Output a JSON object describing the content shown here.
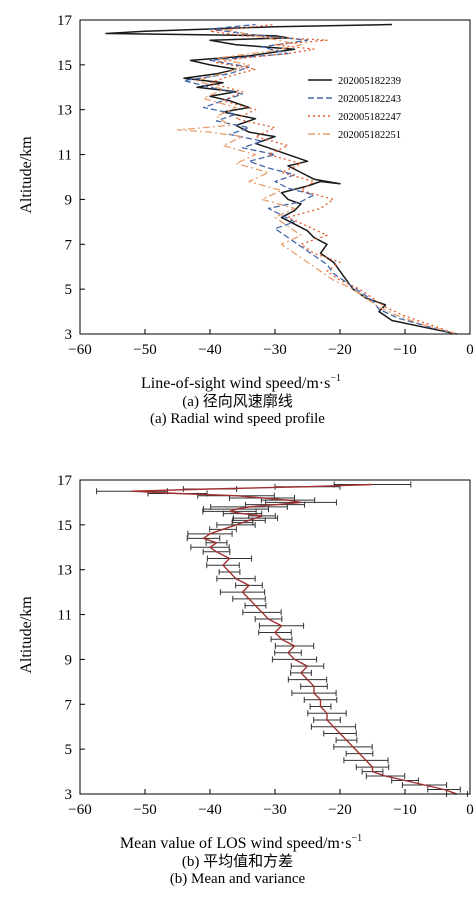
{
  "chart_data": [
    {
      "type": "line",
      "caption_cn": "(a) 径向风速廓线",
      "caption_en": "(a) Radial wind speed profile",
      "xlabel_main": "Line-of-sight wind speed/m·s",
      "xlabel_sup": "−1",
      "ylabel": "Altitude/km",
      "xlim": [
        -60,
        0
      ],
      "ylim": [
        3,
        17
      ],
      "xticks": [
        "−60",
        "−50",
        "−40",
        "−30",
        "−20",
        "−10",
        "0"
      ],
      "yticks": [
        "3",
        "5",
        "7",
        "9",
        "11",
        "13",
        "15",
        "17"
      ],
      "legend_position": "right",
      "series": [
        {
          "name": "202005182239",
          "color": "#1a1a1a",
          "dash": "",
          "x": [
            -2,
            -7,
            -12,
            -14,
            -13,
            -16,
            -18,
            -19,
            -20,
            -21,
            -23,
            -22,
            -24,
            -25,
            -27,
            -29,
            -27,
            -26,
            -28,
            -29,
            -25,
            -23,
            -20,
            -24,
            -26,
            -28,
            -25,
            -28,
            -31,
            -33,
            -30,
            -34,
            -36,
            -33,
            -38,
            -34,
            -37,
            -40,
            -36,
            -42,
            -38,
            -44,
            -39,
            -36,
            -40,
            -43,
            -34,
            -27,
            -36,
            -40,
            -28,
            -30,
            -56,
            -50,
            -40,
            -30,
            -12
          ],
          "y": [
            3,
            3.3,
            3.6,
            4.0,
            4.3,
            4.6,
            5.0,
            5.4,
            5.8,
            6.2,
            6.6,
            7.0,
            7.3,
            7.6,
            7.9,
            8.2,
            8.5,
            8.8,
            9.0,
            9.3,
            9.6,
            9.8,
            9.7,
            9.9,
            10.2,
            10.5,
            10.7,
            11.0,
            11.3,
            11.5,
            11.8,
            12.0,
            12.3,
            12.6,
            12.9,
            13.1,
            13.4,
            13.6,
            13.8,
            14.0,
            14.2,
            14.4,
            14.6,
            14.8,
            15.0,
            15.2,
            15.4,
            15.7,
            15.9,
            16.1,
            16.2,
            16.3,
            16.4,
            16.5,
            16.6,
            16.7,
            16.8
          ]
        },
        {
          "name": "202005182243",
          "color": "#4466aa",
          "dash": "6,3",
          "x": [
            -2,
            -6,
            -11,
            -14,
            -15,
            -17,
            -19,
            -21,
            -22,
            -24,
            -26,
            -28,
            -30,
            -27,
            -29,
            -31,
            -26,
            -24,
            -28,
            -30,
            -27,
            -31,
            -34,
            -30,
            -35,
            -32,
            -37,
            -34,
            -39,
            -36,
            -41,
            -38,
            -35,
            -40,
            -44,
            -37,
            -34,
            -40,
            -28,
            -32,
            -25,
            -35,
            -40,
            -33
          ],
          "y": [
            3,
            3.3,
            3.7,
            4.1,
            4.5,
            4.9,
            5.3,
            5.7,
            6.1,
            6.5,
            6.9,
            7.3,
            7.7,
            8.0,
            8.3,
            8.6,
            8.9,
            9.2,
            9.5,
            9.8,
            10.1,
            10.4,
            10.7,
            11.0,
            11.3,
            11.6,
            11.9,
            12.2,
            12.5,
            12.8,
            13.1,
            13.4,
            13.7,
            14.0,
            14.3,
            14.6,
            14.9,
            15.2,
            15.5,
            15.8,
            16.1,
            16.4,
            16.6,
            16.8
          ]
        },
        {
          "name": "202005182247",
          "color": "#e05a28",
          "dash": "2,3",
          "x": [
            -2,
            -6,
            -10,
            -13,
            -15,
            -17,
            -20,
            -22,
            -20,
            -24,
            -26,
            -22,
            -25,
            -28,
            -23,
            -21,
            -26,
            -24,
            -29,
            -26,
            -31,
            -28,
            -33,
            -30,
            -36,
            -33,
            -38,
            -35,
            -40,
            -37,
            -33,
            -39,
            -35,
            -28,
            -24,
            -30,
            -22,
            -35,
            -40,
            -30
          ],
          "y": [
            3,
            3.4,
            3.8,
            4.2,
            4.6,
            5.0,
            5.4,
            5.8,
            6.2,
            6.6,
            7.0,
            7.4,
            7.8,
            8.2,
            8.6,
            9.0,
            9.4,
            9.8,
            10.2,
            10.6,
            11.0,
            11.4,
            11.8,
            12.2,
            12.6,
            13.0,
            13.4,
            13.8,
            14.2,
            14.5,
            14.8,
            15.1,
            15.3,
            15.5,
            15.7,
            15.9,
            16.1,
            16.3,
            16.5,
            16.8
          ]
        },
        {
          "name": "202005182251",
          "color": "#e8a070",
          "dash": "7,3,2,3",
          "x": [
            -2,
            -7,
            -11,
            -14,
            -16,
            -18,
            -21,
            -23,
            -25,
            -27,
            -29,
            -26,
            -28,
            -30,
            -27,
            -32,
            -29,
            -34,
            -31,
            -36,
            -33,
            -38,
            -35,
            -40,
            -45,
            -37,
            -39,
            -36,
            -41,
            -38,
            -42,
            -37,
            -34,
            -39,
            -31,
            -26,
            -33,
            -38
          ],
          "y": [
            3,
            3.4,
            3.8,
            4.2,
            4.6,
            5.0,
            5.4,
            5.8,
            6.2,
            6.6,
            7.0,
            7.4,
            7.8,
            8.2,
            8.6,
            9.0,
            9.4,
            9.8,
            10.2,
            10.6,
            11.0,
            11.4,
            11.8,
            12.0,
            12.1,
            12.3,
            12.7,
            13.1,
            13.5,
            13.9,
            14.3,
            14.7,
            15.0,
            15.3,
            15.6,
            15.9,
            16.3,
            16.6
          ]
        }
      ]
    },
    {
      "type": "line",
      "caption_cn": "(b) 平均值和方差",
      "caption_en": "(b) Mean and variance",
      "xlabel_main": "Mean value of LOS wind speed/m·s",
      "xlabel_sup": "−1",
      "ylabel": "Altitude/km",
      "xlim": [
        -60,
        0
      ],
      "ylim": [
        3,
        17
      ],
      "xticks": [
        "−60",
        "−50",
        "−40",
        "−30",
        "−20",
        "−10",
        "0"
      ],
      "yticks": [
        "3",
        "5",
        "7",
        "9",
        "11",
        "13",
        "15",
        "17"
      ],
      "series": [
        {
          "name": "",
          "color": "#a03030",
          "dash": "",
          "x": [
            -2,
            -4,
            -7,
            -10,
            -13,
            -15,
            -15,
            -16,
            -17,
            -18,
            -19,
            -20,
            -21,
            -22,
            -22,
            -23,
            -23,
            -24,
            -24,
            -25,
            -26,
            -25,
            -27,
            -28,
            -27,
            -29,
            -30,
            -29,
            -31,
            -32,
            -33,
            -34,
            -35,
            -34,
            -36,
            -37,
            -38,
            -37,
            -39,
            -40,
            -39,
            -41,
            -40,
            -38,
            -36,
            -35,
            -34,
            -33,
            -32,
            -35,
            -37,
            -36,
            -34,
            -30,
            -26,
            -28,
            -32,
            -36,
            -45,
            -52,
            -40,
            -25,
            -15
          ],
          "y": [
            3.0,
            3.2,
            3.4,
            3.6,
            3.8,
            4.0,
            4.2,
            4.5,
            4.8,
            5.1,
            5.4,
            5.7,
            6.0,
            6.3,
            6.6,
            6.9,
            7.2,
            7.5,
            7.8,
            8.1,
            8.4,
            8.7,
            9.0,
            9.3,
            9.6,
            9.9,
            10.2,
            10.5,
            10.8,
            11.1,
            11.4,
            11.7,
            12.0,
            12.3,
            12.6,
            12.9,
            13.2,
            13.5,
            13.8,
            14.0,
            14.2,
            14.4,
            14.6,
            14.8,
            15.0,
            15.1,
            15.2,
            15.3,
            15.4,
            15.5,
            15.6,
            15.7,
            15.8,
            15.9,
            16.0,
            16.1,
            16.2,
            16.3,
            16.4,
            16.5,
            16.6,
            16.7,
            16.8
          ]
        }
      ]
    }
  ]
}
